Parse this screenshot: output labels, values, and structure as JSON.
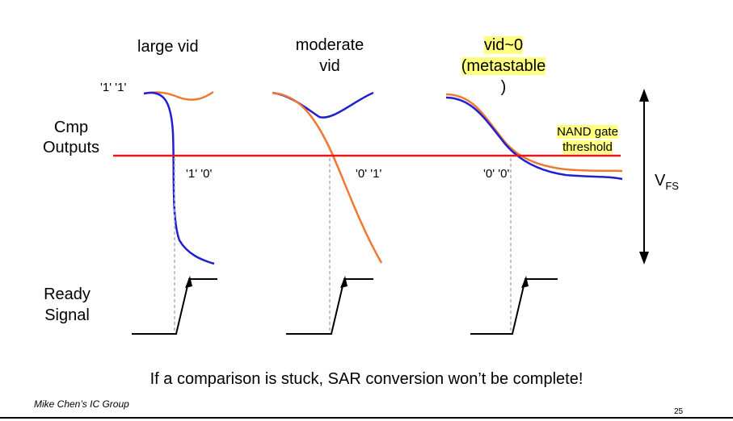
{
  "columns": [
    {
      "title": "large vid",
      "start_state": "'1' '1'",
      "end_state": "'1' '0'"
    },
    {
      "title_line1": "moderate",
      "title_line2": "vid",
      "end_state": "'0' '1'"
    },
    {
      "title_line1": "vid~0",
      "title_line2": "(metastable",
      "title_line3": ")",
      "end_state": "'0' '0'"
    }
  ],
  "row_labels": {
    "cmp_line1": "Cmp",
    "cmp_line2": "Outputs",
    "ready_line1": "Ready",
    "ready_line2": "Signal"
  },
  "threshold": {
    "line1": "NAND gate",
    "line2": "threshold"
  },
  "vfs": {
    "main": "V",
    "sub": "FS"
  },
  "caption": "If a comparison is stuck, SAR conversion won’t be complete!",
  "footer": {
    "author": "Mike Chen’s IC Group",
    "page_number": "25"
  },
  "colors": {
    "blue": "#2020d0",
    "orange": "#f07830",
    "red": "#e81818",
    "highlight": "#ffff80",
    "dashed": "#b0b0b0"
  }
}
